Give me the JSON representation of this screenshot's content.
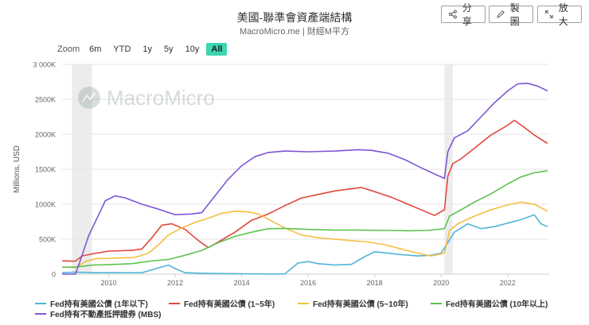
{
  "header": {
    "title": "美國-聯準會資產端結構",
    "subtitle": "MacroMicro.me | 財經M平方"
  },
  "toolbar": {
    "share_label": "分享",
    "draw_label": "製圖",
    "expand_label": "放大"
  },
  "zoom": {
    "label": "Zoom",
    "options": [
      "6m",
      "YTD",
      "1y",
      "5y",
      "10y",
      "All"
    ],
    "active": "All"
  },
  "watermark": "MacroMicro",
  "colors": {
    "zoom_active": "#3ad7b0",
    "recession_band": "#ececec",
    "grid": "#e6e6e6"
  },
  "chart_data": {
    "type": "line",
    "title": "美國-聯準會資產端結構",
    "ylabel": "Millions, USD",
    "xlabel": "",
    "xlim": [
      2008.6,
      2023.25
    ],
    "ylim": [
      0,
      3000000
    ],
    "y_ticks": [
      0,
      500000,
      1000000,
      1500000,
      2000000,
      2500000,
      3000000
    ],
    "y_tick_labels": [
      "0",
      "500K",
      "1000K",
      "1500K",
      "2000K",
      "2500K",
      "3 000K"
    ],
    "x_ticks": [
      2010,
      2012,
      2014,
      2016,
      2018,
      2020,
      2022
    ],
    "x_tick_labels": [
      "2010",
      "2012",
      "2014",
      "2016",
      "2018",
      "2020",
      "2022"
    ],
    "grid": true,
    "legend_position": "bottom",
    "shaded_periods": [
      [
        2008.9,
        2009.5
      ],
      [
        2020.1,
        2020.35
      ]
    ],
    "series": [
      {
        "name": "Fed持有美國公債 (1年以下)",
        "color": "#4fb6d6",
        "points": [
          [
            2008.6,
            20000
          ],
          [
            2009.0,
            30000
          ],
          [
            2009.5,
            20000
          ],
          [
            2010.0,
            20000
          ],
          [
            2011.0,
            20000
          ],
          [
            2011.5,
            90000
          ],
          [
            2011.8,
            130000
          ],
          [
            2012.0,
            80000
          ],
          [
            2012.3,
            20000
          ],
          [
            2013.0,
            10000
          ],
          [
            2014.0,
            5000
          ],
          [
            2015.0,
            2000
          ],
          [
            2015.3,
            5000
          ],
          [
            2015.7,
            160000
          ],
          [
            2016.0,
            180000
          ],
          [
            2016.3,
            150000
          ],
          [
            2016.8,
            130000
          ],
          [
            2017.3,
            140000
          ],
          [
            2017.7,
            250000
          ],
          [
            2018.0,
            320000
          ],
          [
            2018.4,
            300000
          ],
          [
            2018.8,
            280000
          ],
          [
            2019.3,
            260000
          ],
          [
            2019.7,
            270000
          ],
          [
            2020.0,
            300000
          ],
          [
            2020.2,
            450000
          ],
          [
            2020.4,
            600000
          ],
          [
            2020.8,
            720000
          ],
          [
            2021.2,
            650000
          ],
          [
            2021.6,
            680000
          ],
          [
            2022.0,
            730000
          ],
          [
            2022.4,
            780000
          ],
          [
            2022.8,
            850000
          ],
          [
            2023.0,
            720000
          ],
          [
            2023.2,
            680000
          ]
        ]
      },
      {
        "name": "Fed持有美國公債 (1~5年)",
        "color": "#e0483c",
        "points": [
          [
            2008.6,
            190000
          ],
          [
            2009.0,
            185000
          ],
          [
            2009.2,
            260000
          ],
          [
            2009.5,
            290000
          ],
          [
            2010.0,
            330000
          ],
          [
            2010.7,
            340000
          ],
          [
            2011.0,
            360000
          ],
          [
            2011.3,
            520000
          ],
          [
            2011.6,
            700000
          ],
          [
            2011.9,
            720000
          ],
          [
            2012.3,
            640000
          ],
          [
            2012.7,
            480000
          ],
          [
            2013.0,
            380000
          ],
          [
            2013.3,
            460000
          ],
          [
            2013.8,
            600000
          ],
          [
            2014.3,
            770000
          ],
          [
            2014.8,
            860000
          ],
          [
            2015.3,
            980000
          ],
          [
            2015.8,
            1090000
          ],
          [
            2016.3,
            1140000
          ],
          [
            2016.8,
            1190000
          ],
          [
            2017.3,
            1220000
          ],
          [
            2017.6,
            1240000
          ],
          [
            2018.0,
            1180000
          ],
          [
            2018.5,
            1100000
          ],
          [
            2019.0,
            1000000
          ],
          [
            2019.5,
            900000
          ],
          [
            2019.8,
            840000
          ],
          [
            2020.1,
            920000
          ],
          [
            2020.2,
            1400000
          ],
          [
            2020.35,
            1580000
          ],
          [
            2020.6,
            1650000
          ],
          [
            2021.0,
            1800000
          ],
          [
            2021.5,
            1990000
          ],
          [
            2022.0,
            2130000
          ],
          [
            2022.2,
            2200000
          ],
          [
            2022.5,
            2100000
          ],
          [
            2022.8,
            1990000
          ],
          [
            2023.2,
            1870000
          ]
        ]
      },
      {
        "name": "Fed持有美國公債 (5~10年)",
        "color": "#f6bd42",
        "points": [
          [
            2008.6,
            100000
          ],
          [
            2009.0,
            95000
          ],
          [
            2009.3,
            180000
          ],
          [
            2009.6,
            220000
          ],
          [
            2010.2,
            230000
          ],
          [
            2010.8,
            240000
          ],
          [
            2011.2,
            300000
          ],
          [
            2011.5,
            420000
          ],
          [
            2011.8,
            560000
          ],
          [
            2012.2,
            660000
          ],
          [
            2012.6,
            740000
          ],
          [
            2013.0,
            800000
          ],
          [
            2013.4,
            870000
          ],
          [
            2013.8,
            900000
          ],
          [
            2014.2,
            890000
          ],
          [
            2014.5,
            860000
          ],
          [
            2014.9,
            760000
          ],
          [
            2015.3,
            660000
          ],
          [
            2015.8,
            560000
          ],
          [
            2016.3,
            520000
          ],
          [
            2016.8,
            500000
          ],
          [
            2017.3,
            480000
          ],
          [
            2017.8,
            460000
          ],
          [
            2018.3,
            420000
          ],
          [
            2018.8,
            360000
          ],
          [
            2019.3,
            300000
          ],
          [
            2019.7,
            260000
          ],
          [
            2020.1,
            300000
          ],
          [
            2020.25,
            620000
          ],
          [
            2020.5,
            720000
          ],
          [
            2021.0,
            830000
          ],
          [
            2021.5,
            920000
          ],
          [
            2022.0,
            990000
          ],
          [
            2022.4,
            1030000
          ],
          [
            2022.8,
            1000000
          ],
          [
            2023.2,
            900000
          ]
        ]
      },
      {
        "name": "Fed持有美國公債 (10年以上)",
        "color": "#5ec34f",
        "points": [
          [
            2008.6,
            100000
          ],
          [
            2009.0,
            100000
          ],
          [
            2009.5,
            130000
          ],
          [
            2010.0,
            135000
          ],
          [
            2010.7,
            150000
          ],
          [
            2011.3,
            190000
          ],
          [
            2011.8,
            210000
          ],
          [
            2012.3,
            270000
          ],
          [
            2012.8,
            340000
          ],
          [
            2013.3,
            450000
          ],
          [
            2013.8,
            540000
          ],
          [
            2014.3,
            600000
          ],
          [
            2014.8,
            650000
          ],
          [
            2015.3,
            655000
          ],
          [
            2016.0,
            640000
          ],
          [
            2016.8,
            630000
          ],
          [
            2017.5,
            630000
          ],
          [
            2018.3,
            625000
          ],
          [
            2019.0,
            620000
          ],
          [
            2019.6,
            625000
          ],
          [
            2020.1,
            650000
          ],
          [
            2020.25,
            830000
          ],
          [
            2020.6,
            920000
          ],
          [
            2021.0,
            1030000
          ],
          [
            2021.5,
            1150000
          ],
          [
            2022.0,
            1290000
          ],
          [
            2022.4,
            1390000
          ],
          [
            2022.8,
            1450000
          ],
          [
            2023.2,
            1480000
          ]
        ]
      },
      {
        "name": "Fed持有不動產抵押證券 (MBS)",
        "color": "#7e56d6",
        "points": [
          [
            2008.6,
            0
          ],
          [
            2009.0,
            0
          ],
          [
            2009.15,
            200000
          ],
          [
            2009.4,
            550000
          ],
          [
            2009.7,
            850000
          ],
          [
            2009.9,
            1050000
          ],
          [
            2010.2,
            1120000
          ],
          [
            2010.5,
            1090000
          ],
          [
            2011.0,
            1000000
          ],
          [
            2011.5,
            930000
          ],
          [
            2012.0,
            850000
          ],
          [
            2012.5,
            860000
          ],
          [
            2012.8,
            880000
          ],
          [
            2013.2,
            1120000
          ],
          [
            2013.6,
            1360000
          ],
          [
            2014.0,
            1550000
          ],
          [
            2014.4,
            1680000
          ],
          [
            2014.8,
            1740000
          ],
          [
            2015.3,
            1760000
          ],
          [
            2016.0,
            1750000
          ],
          [
            2016.8,
            1760000
          ],
          [
            2017.5,
            1780000
          ],
          [
            2017.9,
            1770000
          ],
          [
            2018.4,
            1730000
          ],
          [
            2018.9,
            1640000
          ],
          [
            2019.4,
            1520000
          ],
          [
            2019.9,
            1410000
          ],
          [
            2020.1,
            1370000
          ],
          [
            2020.2,
            1750000
          ],
          [
            2020.4,
            1950000
          ],
          [
            2020.8,
            2050000
          ],
          [
            2021.2,
            2250000
          ],
          [
            2021.6,
            2450000
          ],
          [
            2022.0,
            2620000
          ],
          [
            2022.3,
            2720000
          ],
          [
            2022.6,
            2730000
          ],
          [
            2022.9,
            2690000
          ],
          [
            2023.2,
            2620000
          ]
        ]
      }
    ]
  }
}
